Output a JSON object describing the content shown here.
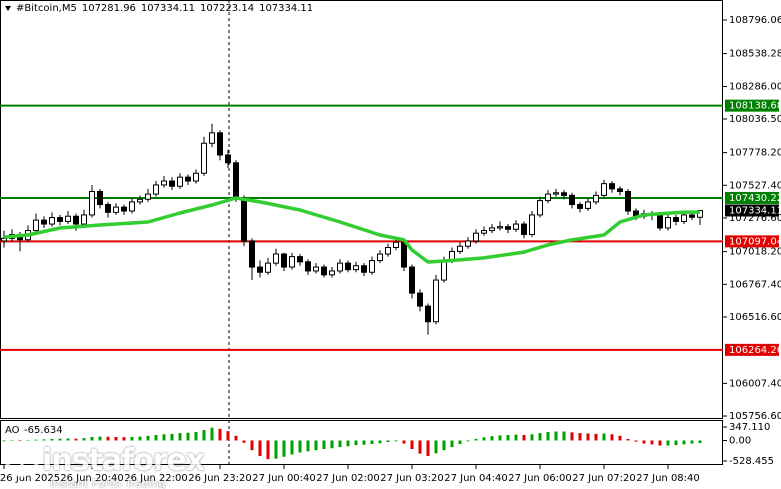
{
  "chart_data": {
    "type": "candlestick",
    "symbol": "#Bitcoin,M5",
    "categories": [
      null,
      null,
      null,
      null,
      null,
      null,
      null,
      null,
      null,
      null,
      null,
      null,
      null,
      null,
      null,
      null,
      null,
      null,
      null,
      null,
      null,
      null,
      null,
      null,
      null,
      null,
      null,
      null,
      null,
      null,
      null,
      null,
      null,
      null,
      null,
      null,
      null,
      null,
      null,
      null,
      null,
      null,
      null,
      null,
      null,
      null,
      null,
      null,
      null,
      null,
      null,
      null,
      null,
      null,
      null,
      null,
      null,
      null,
      null,
      null,
      null,
      null,
      null,
      null,
      null,
      null,
      null,
      null,
      null,
      null,
      null,
      null,
      null,
      null,
      null,
      null,
      null,
      null,
      null,
      null,
      null,
      null,
      null,
      null,
      null,
      null,
      null,
      null
    ],
    "ohlc": [
      [
        107100,
        107180,
        107050,
        107120
      ],
      [
        107120,
        107190,
        107090,
        107150
      ],
      [
        107150,
        107170,
        107020,
        107110
      ],
      [
        107110,
        107220,
        107090,
        107180
      ],
      [
        107180,
        107310,
        107160,
        107260
      ],
      [
        107260,
        107290,
        107200,
        107230
      ],
      [
        107230,
        107320,
        107210,
        107280
      ],
      [
        107280,
        107300,
        107220,
        107250
      ],
      [
        107250,
        107330,
        107230,
        107290
      ],
      [
        107290,
        107310,
        107180,
        107230
      ],
      [
        107230,
        107340,
        107210,
        107300
      ],
      [
        107300,
        107530,
        107280,
        107480
      ],
      [
        107480,
        107500,
        107350,
        107380
      ],
      [
        107380,
        107400,
        107280,
        107320
      ],
      [
        107320,
        107390,
        107300,
        107360
      ],
      [
        107360,
        107380,
        107300,
        107330
      ],
      [
        107330,
        107430,
        107310,
        107400
      ],
      [
        107400,
        107450,
        107380,
        107420
      ],
      [
        107420,
        107500,
        107400,
        107460
      ],
      [
        107460,
        107560,
        107440,
        107530
      ],
      [
        107530,
        107600,
        107510,
        107560
      ],
      [
        107560,
        107590,
        107490,
        107520
      ],
      [
        107520,
        107620,
        107500,
        107590
      ],
      [
        107590,
        107610,
        107530,
        107560
      ],
      [
        107560,
        107650,
        107540,
        107620
      ],
      [
        107620,
        107900,
        107600,
        107850
      ],
      [
        107850,
        108000,
        107820,
        107930
      ],
      [
        107930,
        107950,
        107720,
        107760
      ],
      [
        107760,
        107800,
        107660,
        107700
      ],
      [
        107700,
        107720,
        107400,
        107430
      ],
      [
        107430,
        107450,
        107060,
        107100
      ],
      [
        107100,
        107120,
        106800,
        106900
      ],
      [
        106900,
        106950,
        106820,
        106860
      ],
      [
        106860,
        106970,
        106840,
        106930
      ],
      [
        106930,
        107040,
        106910,
        107000
      ],
      [
        107000,
        107010,
        106870,
        106900
      ],
      [
        106900,
        107010,
        106880,
        106980
      ],
      [
        106980,
        107000,
        106910,
        106940
      ],
      [
        106940,
        106960,
        106840,
        106870
      ],
      [
        106870,
        106930,
        106850,
        106900
      ],
      [
        106900,
        106920,
        106820,
        106840
      ],
      [
        106840,
        106900,
        106820,
        106870
      ],
      [
        106870,
        106960,
        106850,
        106930
      ],
      [
        106930,
        106950,
        106860,
        106880
      ],
      [
        106880,
        106940,
        106860,
        106910
      ],
      [
        106910,
        106930,
        106830,
        106860
      ],
      [
        106860,
        106980,
        106840,
        106950
      ],
      [
        106950,
        107030,
        106930,
        107000
      ],
      [
        107000,
        107080,
        106980,
        107050
      ],
      [
        107050,
        107120,
        107030,
        107090
      ],
      [
        107090,
        107100,
        106870,
        106900
      ],
      [
        106900,
        106920,
        106660,
        106700
      ],
      [
        106700,
        106730,
        106560,
        106600
      ],
      [
        106600,
        106620,
        106380,
        106480
      ],
      [
        106480,
        106840,
        106460,
        106800
      ],
      [
        106800,
        106980,
        106780,
        106950
      ],
      [
        106950,
        107050,
        106930,
        107020
      ],
      [
        107020,
        107090,
        107000,
        107060
      ],
      [
        107060,
        107130,
        107040,
        107100
      ],
      [
        107100,
        107190,
        107080,
        107160
      ],
      [
        107160,
        107210,
        107140,
        107180
      ],
      [
        107180,
        107230,
        107160,
        107200
      ],
      [
        107200,
        107250,
        107180,
        107210
      ],
      [
        107210,
        107230,
        107160,
        107190
      ],
      [
        107190,
        107260,
        107170,
        107230
      ],
      [
        107230,
        107250,
        107120,
        107150
      ],
      [
        107150,
        107330,
        107130,
        107300
      ],
      [
        107300,
        107440,
        107280,
        107410
      ],
      [
        107410,
        107490,
        107390,
        107460
      ],
      [
        107460,
        107500,
        107440,
        107470
      ],
      [
        107470,
        107490,
        107420,
        107450
      ],
      [
        107450,
        107470,
        107350,
        107380
      ],
      [
        107380,
        107400,
        107320,
        107350
      ],
      [
        107350,
        107430,
        107330,
        107400
      ],
      [
        107400,
        107480,
        107380,
        107450
      ],
      [
        107450,
        107570,
        107430,
        107540
      ],
      [
        107540,
        107560,
        107470,
        107500
      ],
      [
        107500,
        107520,
        107450,
        107480
      ],
      [
        107480,
        107500,
        107300,
        107330
      ],
      [
        107330,
        107350,
        107260,
        107290
      ],
      [
        107290,
        107340,
        107270,
        107310
      ],
      [
        107310,
        107330,
        107260,
        107300
      ],
      [
        107300,
        107320,
        107180,
        107200
      ],
      [
        107200,
        107310,
        107180,
        107280
      ],
      [
        107280,
        107300,
        107220,
        107250
      ],
      [
        107250,
        107330,
        107230,
        107300
      ],
      [
        107300,
        107320,
        107260,
        107281.96
      ],
      [
        107281.96,
        107334.11,
        107223.14,
        107334.11
      ]
    ],
    "bull_color": "#ffffff",
    "bear_color": "#000000",
    "ma": {
      "color": "#32cd32",
      "x": [
        0,
        3,
        7,
        12,
        18,
        22,
        26,
        29,
        32,
        37,
        42,
        47,
        50,
        51,
        53,
        56,
        60,
        65,
        68,
        71,
        75,
        77,
        80,
        85,
        87
      ],
      "values": [
        107130,
        107146,
        107200,
        107223,
        107246,
        107315,
        107376,
        107430,
        107400,
        107338,
        107246,
        107146,
        107108,
        107031,
        106939,
        106950,
        106970,
        107015,
        107070,
        107108,
        107146,
        107246,
        107300,
        107322,
        107322
      ]
    },
    "levels": [
      {
        "value": 108138.68,
        "color": "#008000"
      },
      {
        "value": 107430.22,
        "color": "#008000"
      },
      {
        "value": 107097.04,
        "color": "#e00000"
      },
      {
        "value": 106264.26,
        "color": "#e00000"
      }
    ],
    "ylim": [
      105741.4,
      108949.6
    ],
    "yticks": [
      108796.06,
      108538.28,
      {
        "value": 108286.0,
        "label": "108286.00"
      },
      {
        "value": 108036.5,
        "label": "108036.50"
      },
      {
        "value": 107778.2,
        "label": "107778.20"
      },
      {
        "value": 107527.4,
        "label": "107527.40"
      },
      {
        "value": 107276.6,
        "label": "107276.60"
      },
      {
        "value": 107018.2,
        "label": "107018.20"
      },
      {
        "value": 106767.4,
        "label": "106767.40"
      },
      {
        "value": 106516.6,
        "label": "106516.60"
      },
      {
        "value": 106007.4,
        "label": "106007.40"
      },
      {
        "value": 105756.6,
        "label": "105756.60"
      }
    ],
    "xlim": [
      -0.5,
      89.875
    ],
    "xticks": [
      {
        "value": 0,
        "label": "26 Jun 2025"
      },
      {
        "value": 11,
        "label": "26 Jun 20:40"
      },
      {
        "value": 19,
        "label": "26 Jun 22:00"
      },
      {
        "value": 27,
        "label": "26 Jun 23:20"
      },
      {
        "value": 35,
        "label": "27 Jun 00:40"
      },
      {
        "value": 43,
        "label": "27 Jun 02:00"
      },
      {
        "value": 51,
        "label": "27 Jun 03:20"
      },
      {
        "value": 59,
        "label": "27 Jun 04:40"
      },
      {
        "value": 67,
        "label": "27 Jun 06:00"
      },
      {
        "value": 75,
        "label": "27 Jun 07:20"
      },
      {
        "value": 83,
        "label": "27 Jun 08:40"
      }
    ],
    "grid": false,
    "ao": {
      "name": "AO",
      "up_color": "#00a000",
      "down_color": "#e00000",
      "values": [
        -20,
        -10,
        -15,
        5,
        20,
        30,
        40,
        45,
        50,
        45,
        60,
        90,
        100,
        95,
        90,
        85,
        90,
        100,
        120,
        140,
        160,
        170,
        190,
        200,
        220,
        270,
        330,
        300,
        240,
        120,
        -60,
        -250,
        -400,
        -480,
        -470,
        -420,
        -360,
        -310,
        -280,
        -250,
        -220,
        -200,
        -170,
        -150,
        -120,
        -110,
        -90,
        -70,
        -40,
        -20,
        -80,
        -220,
        -340,
        -400,
        -330,
        -250,
        -170,
        -90,
        -20,
        40,
        80,
        110,
        130,
        140,
        150,
        140,
        160,
        190,
        220,
        230,
        230,
        210,
        190,
        180,
        170,
        180,
        160,
        120,
        40,
        -30,
        -80,
        -100,
        -130,
        -130,
        -120,
        -100,
        -80,
        -65.634
      ],
      "ylim": [
        -580,
        501.6
      ],
      "yticks": [
        {
          "value": 347.11,
          "label": "347.110"
        },
        {
          "value": 0,
          "label": "0.00"
        },
        -528.455
      ]
    },
    "watermark": {
      "brand": "instaforex",
      "tagline": "Instant Forex Trading"
    }
  }
}
